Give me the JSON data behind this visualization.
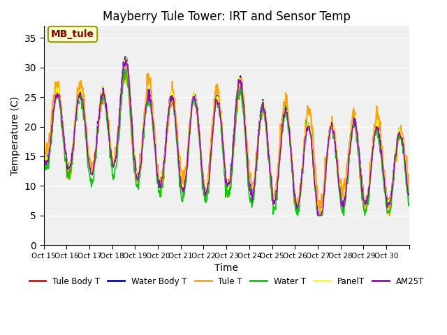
{
  "title": "Mayberry Tule Tower: IRT and Sensor Temp",
  "xlabel": "Time",
  "ylabel": "Temperature (C)",
  "ylim": [
    0,
    37
  ],
  "yticks": [
    0,
    5,
    10,
    15,
    20,
    25,
    30,
    35
  ],
  "annotation_text": "MB_tule",
  "annotation_color": "#8B0000",
  "annotation_bg": "#FFFFCC",
  "bg_color": "#E8E8E8",
  "plot_bg": "#F0F0F0",
  "series": {
    "Tule Body T": {
      "color": "#FF0000",
      "lw": 1.2
    },
    "Water Body T": {
      "color": "#0000FF",
      "lw": 1.2
    },
    "Tule T": {
      "color": "#FFA500",
      "lw": 1.5
    },
    "Water T": {
      "color": "#00CC00",
      "lw": 1.2
    },
    "PanelT": {
      "color": "#FFFF00",
      "lw": 1.2
    },
    "AM25T": {
      "color": "#9900CC",
      "lw": 1.2
    }
  },
  "xtick_labels": [
    "Oct 15",
    "Oct 16",
    "Oct 17",
    "Oct 18",
    "Oct 19",
    "Oct 20",
    "Oct 21",
    "Oct 22",
    "Oct 23",
    "Oct 24",
    "Oct 25",
    "Oct 26",
    "Oct 27",
    "Oct 28",
    "Oct 29",
    "Oct 30"
  ],
  "n_days": 16
}
